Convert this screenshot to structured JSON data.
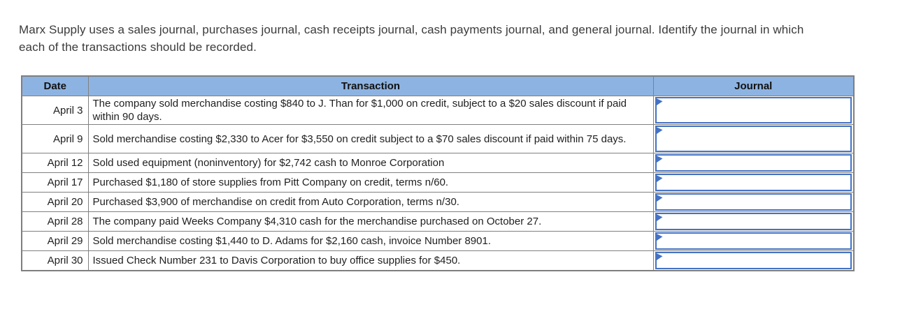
{
  "page": {
    "instructions": "Marx Supply uses a sales journal, purchases journal, cash receipts journal, cash payments journal, and general journal. Identify the journal in which each of the transactions should be recorded."
  },
  "table": {
    "headers": {
      "date": "Date",
      "transaction": "Transaction",
      "journal": "Journal"
    },
    "rows": [
      {
        "date": "April 3",
        "transaction": "The company sold merchandise costing $840 to J. Than for $1,000 on credit, subject to a $20 sales discount if paid within 90 days.",
        "journal_value": ""
      },
      {
        "date": "April 9",
        "transaction": "Sold merchandise costing $2,330 to Acer for $3,550 on credit subject to a $70 sales discount if paid within 75 days.",
        "journal_value": ""
      },
      {
        "date": "April 12",
        "transaction": "Sold used equipment (noninventory) for $2,742 cash to Monroe Corporation",
        "journal_value": ""
      },
      {
        "date": "April 17",
        "transaction": "Purchased $1,180 of store supplies from Pitt Company on credit, terms n/60.",
        "journal_value": ""
      },
      {
        "date": "April 20",
        "transaction": "Purchased $3,900 of merchandise on credit from Auto Corporation, terms n/30.",
        "journal_value": ""
      },
      {
        "date": "April 28",
        "transaction": "The company paid Weeks Company $4,310 cash for the merchandise purchased on October 27.",
        "journal_value": ""
      },
      {
        "date": "April 29",
        "transaction": "Sold merchandise costing $1,440 to D. Adams for $2,160 cash, invoice Number 8901.",
        "journal_value": ""
      },
      {
        "date": "April 30",
        "transaction": "Issued Check Number 231 to Davis Corporation to buy office supplies for $450.",
        "journal_value": ""
      }
    ],
    "colors": {
      "header_bg": "#8DB3E2",
      "dropdown_border": "#4472C4",
      "grid_border": "#808080",
      "flag_icon": "#4472C4"
    },
    "icon_names": {
      "dropdown_marker": "dropdown-flag-icon"
    }
  }
}
